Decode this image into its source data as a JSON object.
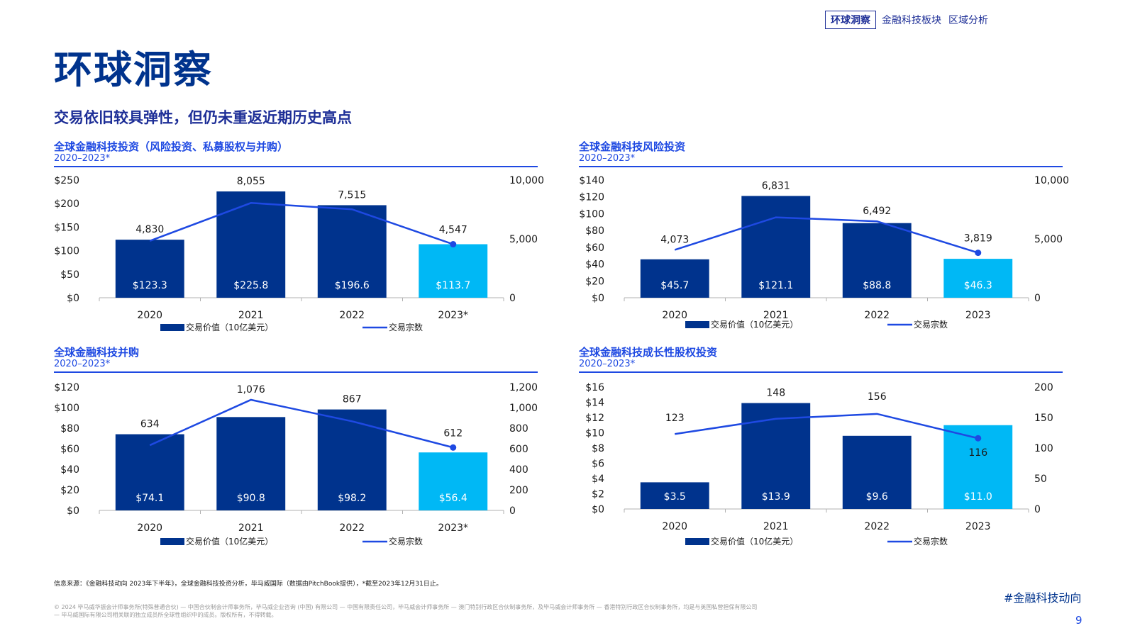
{
  "header": {
    "nav_boxed": "环球洞察",
    "nav_items": [
      "金融科技板块",
      "区域分析"
    ]
  },
  "title": "环球洞察",
  "subtitle": "交易依旧较具弹性，但仍未重返近期历史高点",
  "colors": {
    "bar": "#00338d",
    "bar_highlight": "#00b8f5",
    "line": "#1e49e2",
    "accent": "#1e2f97"
  },
  "chart_data": [
    {
      "type": "bar",
      "title": "全球金融科技投资（风险投资、私募股权与并购）",
      "period": "2020–2023*",
      "categories": [
        "2020",
        "2021",
        "2022",
        "2023*"
      ],
      "series": [
        {
          "name": "交易价值（10亿美元）",
          "type": "bar",
          "axis": "left",
          "values": [
            123.3,
            225.8,
            196.6,
            113.7
          ],
          "labels": [
            "$123.3",
            "$225.8",
            "$196.6",
            "$113.7"
          ]
        },
        {
          "name": "交易宗数",
          "type": "line",
          "axis": "right",
          "values": [
            4830,
            8055,
            7515,
            4547
          ],
          "labels": [
            "4,830",
            "8,055",
            "7,515",
            "4,547"
          ]
        }
      ],
      "left_ticks": [
        "$0",
        "$50",
        "$100",
        "$150",
        "$200",
        "$250"
      ],
      "left_max": 250,
      "right_ticks": [
        "0",
        "5,000",
        "10,000"
      ],
      "right_max": 10000,
      "highlight_last": true,
      "legend": "bottom"
    },
    {
      "type": "bar",
      "title": "全球金融科技风险投资",
      "period": "2020–2023*",
      "categories": [
        "2020",
        "2021",
        "2022",
        "2023"
      ],
      "series": [
        {
          "name": "交易价值（10亿美元）",
          "type": "bar",
          "axis": "left",
          "values": [
            45.7,
            121.1,
            88.8,
            46.3
          ],
          "labels": [
            "$45.7",
            "$121.1",
            "$88.8",
            "$46.3"
          ]
        },
        {
          "name": "交易宗数",
          "type": "line",
          "axis": "right",
          "values": [
            4073,
            6831,
            6492,
            3819
          ],
          "labels": [
            "4,073",
            "6,831",
            "6,492",
            "3,819"
          ]
        }
      ],
      "left_ticks": [
        "$0",
        "$20",
        "$40",
        "$60",
        "$80",
        "$100",
        "$120",
        "$140"
      ],
      "left_max": 140,
      "right_ticks": [
        "0",
        "5,000",
        "10,000"
      ],
      "right_max": 10000,
      "highlight_last": true,
      "legend": "bottom"
    },
    {
      "type": "bar",
      "title": "全球金融科技并购",
      "period": "2020–2023*",
      "categories": [
        "2020",
        "2021",
        "2022",
        "2023*"
      ],
      "series": [
        {
          "name": "交易价值（10亿美元）",
          "type": "bar",
          "axis": "left",
          "values": [
            74.1,
            90.8,
            98.2,
            56.4
          ],
          "labels": [
            "$74.1",
            "$90.8",
            "$98.2",
            "$56.4"
          ]
        },
        {
          "name": "交易宗数",
          "type": "line",
          "axis": "right",
          "values": [
            634,
            1076,
            867,
            612
          ],
          "labels": [
            "634",
            "1,076",
            "867",
            "612"
          ]
        }
      ],
      "left_ticks": [
        "$0",
        "$20",
        "$40",
        "$60",
        "$80",
        "$100",
        "$120"
      ],
      "left_max": 120,
      "right_ticks": [
        "0",
        "200",
        "400",
        "600",
        "800",
        "1,000",
        "1,200"
      ],
      "right_max": 1200,
      "highlight_last": true,
      "legend": "bottom"
    },
    {
      "type": "bar",
      "title": "全球金融科技成长性股权投资",
      "period": "2020–2023*",
      "categories": [
        "2020",
        "2021",
        "2022",
        "2023"
      ],
      "series": [
        {
          "name": "交易价值（10亿美元）",
          "type": "bar",
          "axis": "left",
          "values": [
            3.5,
            13.9,
            9.6,
            11.0
          ],
          "labels": [
            "$3.5",
            "$13.9",
            "$9.6",
            "$11.0"
          ]
        },
        {
          "name": "交易宗数",
          "type": "line",
          "axis": "right",
          "values": [
            123,
            148,
            156,
            116
          ],
          "labels": [
            "123",
            "148",
            "156",
            "116"
          ]
        }
      ],
      "left_ticks": [
        "$0",
        "$2",
        "$4",
        "$6",
        "$8",
        "$10",
        "$12",
        "$14",
        "$16"
      ],
      "left_max": 16,
      "right_ticks": [
        "0",
        "50",
        "100",
        "150",
        "200"
      ],
      "right_max": 200,
      "highlight_last": true,
      "legend": "bottom"
    }
  ],
  "footer": {
    "source": "信息来源：《金融科技动向 2023年下半年》，全球金融科技投资分析，毕马威国际（数据由PitchBook提供），*截至2023年12月31日止。",
    "hashtag": "#金融科技动向",
    "copyright": "© 2024 毕马威华振会计师事务所(特殊普通合伙) — 中国合伙制会计师事务所，毕马威企业咨询 (中国) 有限公司 — 中国有限责任公司，毕马威会计师事务所 — 澳门特别行政区合伙制事务所，及毕马威会计师事务所 — 香港特别行政区合伙制事务所，均是与英国私营担保有限公司 — 毕马威国际有限公司相关联的独立成员所全球性组织中的成员。版权所有，不得转载。",
    "page_number": "9"
  }
}
